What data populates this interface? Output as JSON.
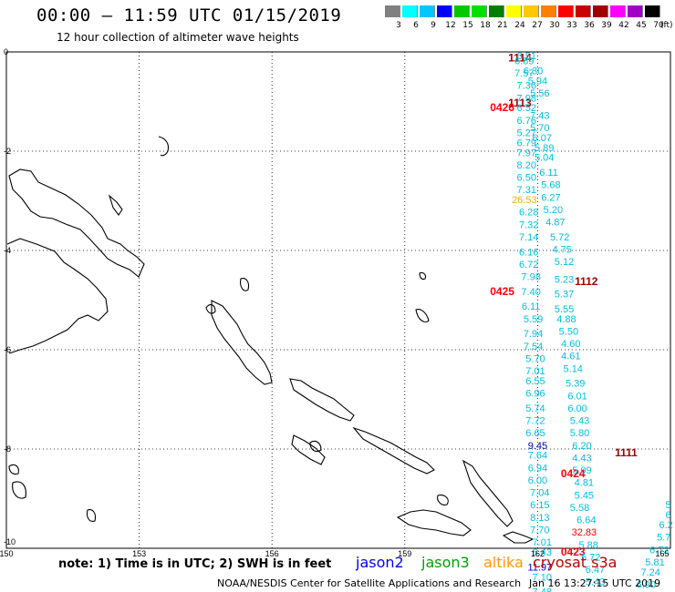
{
  "header": {
    "title": "00:00 — 11:59 UTC 01/15/2019",
    "subtitle": "12 hour collection of altimeter wave heights"
  },
  "legend": {
    "unit": "(ft)",
    "bins": [
      {
        "label": "3",
        "color": "#808080"
      },
      {
        "label": "6",
        "color": "#00ffff"
      },
      {
        "label": "9",
        "color": "#00c8ff"
      },
      {
        "label": "12",
        "color": "#0000ff"
      },
      {
        "label": "15",
        "color": "#00c800"
      },
      {
        "label": "18",
        "color": "#00e000"
      },
      {
        "label": "21",
        "color": "#008000"
      },
      {
        "label": "24",
        "color": "#ffff00"
      },
      {
        "label": "27",
        "color": "#ffc800"
      },
      {
        "label": "30",
        "color": "#ff8000"
      },
      {
        "label": "33",
        "color": "#ff0000"
      },
      {
        "label": "36",
        "color": "#c80000"
      },
      {
        "label": "39",
        "color": "#a00000"
      },
      {
        "label": "42",
        "color": "#ff00ff"
      },
      {
        "label": "45",
        "color": "#a000c8"
      },
      {
        "label": "70",
        "color": "#000000"
      }
    ]
  },
  "axes": {
    "x_ticks": [
      "150",
      "153",
      "156",
      "159",
      "162",
      "165"
    ],
    "y_ticks": [
      "0",
      "-2",
      "-4",
      "-6",
      "-8",
      "-10"
    ]
  },
  "footer": {
    "note": "note: 1) Time is in UTC; 2) SWH is in feet",
    "satellites": [
      {
        "name": "jason2",
        "color": "#0000ff"
      },
      {
        "name": "jason3",
        "color": "#00a000"
      },
      {
        "name": "altika",
        "color": "#ff9900"
      },
      {
        "name": "cryosat s3a",
        "color": "#c00000"
      }
    ],
    "credit": "NOAA/NESDIS Center for Satellite Applications and Research",
    "stamp": "Jan 16 13:27:15 UTC 2019"
  },
  "colors": {
    "cyan": "#00c0e0",
    "dark_red": "#a00000",
    "red": "#ff0000",
    "orange": "#f0b000",
    "blue": "#0000c0"
  },
  "track_labels": [
    {
      "text": "1114",
      "lon": 161.6,
      "lat": -0.05,
      "color": "#a00000"
    },
    {
      "text": "1113",
      "lon": 161.6,
      "lat": -0.95,
      "color": "#a00000"
    },
    {
      "text": "0426",
      "lon": 161.2,
      "lat": -1.05,
      "color": "#ff0000"
    },
    {
      "text": "1112",
      "lon": 163.1,
      "lat": -4.55,
      "color": "#a00000"
    },
    {
      "text": "0425",
      "lon": 161.2,
      "lat": -4.75,
      "color": "#ff0000"
    },
    {
      "text": "1111",
      "lon": 164.0,
      "lat": -8.0,
      "color": "#a00000"
    },
    {
      "text": "0424",
      "lon": 162.8,
      "lat": -8.42,
      "color": "#ff0000"
    },
    {
      "text": "0423",
      "lon": 162.8,
      "lat": -10.0,
      "color": "#ff0000"
    }
  ],
  "observations": [
    {
      "v": "6.51",
      "lon": 161.75,
      "lat": 0.0
    },
    {
      "v": "6.89",
      "lon": 161.7,
      "lat": -0.1
    },
    {
      "v": "6.30",
      "lon": 161.9,
      "lat": -0.3
    },
    {
      "v": "7.57",
      "lon": 161.7,
      "lat": -0.35
    },
    {
      "v": "5.94",
      "lon": 162.0,
      "lat": -0.5
    },
    {
      "v": "7.36",
      "lon": 161.75,
      "lat": -0.6
    },
    {
      "v": "5.56",
      "lon": 162.05,
      "lat": -0.75
    },
    {
      "v": "7.98",
      "lon": 161.75,
      "lat": -0.85
    },
    {
      "v": "6.52",
      "lon": 161.75,
      "lat": -1.05
    },
    {
      "v": "7.43",
      "lon": 162.05,
      "lat": -1.2
    },
    {
      "v": "6.76",
      "lon": 161.75,
      "lat": -1.3
    },
    {
      "v": "5.70",
      "lon": 162.05,
      "lat": -1.45
    },
    {
      "v": "5.27",
      "lon": 161.75,
      "lat": -1.55
    },
    {
      "v": "6.07",
      "lon": 162.1,
      "lat": -1.65
    },
    {
      "v": "6.79",
      "lon": 161.75,
      "lat": -1.75
    },
    {
      "v": "5.89",
      "lon": 162.15,
      "lat": -1.85
    },
    {
      "v": "7.97",
      "lon": 161.75,
      "lat": -1.95
    },
    {
      "v": "5.04",
      "lon": 162.15,
      "lat": -2.05
    },
    {
      "v": "8.20",
      "lon": 161.75,
      "lat": -2.2
    },
    {
      "v": "6.11",
      "lon": 162.25,
      "lat": -2.35
    },
    {
      "v": "6.50",
      "lon": 161.75,
      "lat": -2.45
    },
    {
      "v": "5.68",
      "lon": 162.3,
      "lat": -2.6
    },
    {
      "v": "7.31",
      "lon": 161.75,
      "lat": -2.7
    },
    {
      "v": "6.27",
      "lon": 162.3,
      "lat": -2.85
    },
    {
      "v": "26.53",
      "lon": 161.7,
      "lat": -2.9,
      "c": "orange"
    },
    {
      "v": "5.20",
      "lon": 162.35,
      "lat": -3.1
    },
    {
      "v": "6.28",
      "lon": 161.8,
      "lat": -3.15
    },
    {
      "v": "4.87",
      "lon": 162.4,
      "lat": -3.35
    },
    {
      "v": "7.32",
      "lon": 161.8,
      "lat": -3.4
    },
    {
      "v": "5.72",
      "lon": 162.5,
      "lat": -3.65
    },
    {
      "v": "7.14",
      "lon": 161.8,
      "lat": -3.65
    },
    {
      "v": "4.75",
      "lon": 162.55,
      "lat": -3.9
    },
    {
      "v": "6.16",
      "lon": 161.8,
      "lat": -3.95
    },
    {
      "v": "5.12",
      "lon": 162.6,
      "lat": -4.15
    },
    {
      "v": "6.72",
      "lon": 161.8,
      "lat": -4.2
    },
    {
      "v": "7.98",
      "lon": 161.85,
      "lat": -4.45
    },
    {
      "v": "5.23",
      "lon": 162.6,
      "lat": -4.5
    },
    {
      "v": "7.40",
      "lon": 161.85,
      "lat": -4.75
    },
    {
      "v": "5.37",
      "lon": 162.6,
      "lat": -4.8
    },
    {
      "v": "6.11",
      "lon": 161.85,
      "lat": -5.05
    },
    {
      "v": "5.55",
      "lon": 162.6,
      "lat": -5.1
    },
    {
      "v": "4.88",
      "lon": 162.65,
      "lat": -5.3
    },
    {
      "v": "5.59",
      "lon": 161.9,
      "lat": -5.3
    },
    {
      "v": "5.50",
      "lon": 162.7,
      "lat": -5.55
    },
    {
      "v": "7.94",
      "lon": 161.9,
      "lat": -5.6
    },
    {
      "v": "4.60",
      "lon": 162.75,
      "lat": -5.8
    },
    {
      "v": "7.54",
      "lon": 161.9,
      "lat": -5.85
    },
    {
      "v": "4.61",
      "lon": 162.75,
      "lat": -6.05
    },
    {
      "v": "5.70",
      "lon": 161.95,
      "lat": -6.1
    },
    {
      "v": "5.14",
      "lon": 162.8,
      "lat": -6.3
    },
    {
      "v": "7.01",
      "lon": 161.95,
      "lat": -6.35
    },
    {
      "v": "6.55",
      "lon": 161.95,
      "lat": -6.55
    },
    {
      "v": "5.39",
      "lon": 162.85,
      "lat": -6.6
    },
    {
      "v": "6.96",
      "lon": 161.95,
      "lat": -6.8
    },
    {
      "v": "6.01",
      "lon": 162.9,
      "lat": -6.85
    },
    {
      "v": "5.74",
      "lon": 161.95,
      "lat": -7.1
    },
    {
      "v": "6.00",
      "lon": 162.9,
      "lat": -7.1
    },
    {
      "v": "7.72",
      "lon": 161.95,
      "lat": -7.35
    },
    {
      "v": "5.43",
      "lon": 162.95,
      "lat": -7.35
    },
    {
      "v": "6.65",
      "lon": 161.95,
      "lat": -7.6
    },
    {
      "v": "5.80",
      "lon": 162.95,
      "lat": -7.6
    },
    {
      "v": "9.45",
      "lon": 162.0,
      "lat": -7.85,
      "c": "blue"
    },
    {
      "v": "6.20",
      "lon": 163.0,
      "lat": -7.85
    },
    {
      "v": "7.64",
      "lon": 162.0,
      "lat": -8.05
    },
    {
      "v": "4.43",
      "lon": 163.0,
      "lat": -8.1
    },
    {
      "v": "6.94",
      "lon": 162.0,
      "lat": -8.3
    },
    {
      "v": "5.09",
      "lon": 163.0,
      "lat": -8.35
    },
    {
      "v": "6.00",
      "lon": 162.0,
      "lat": -8.55
    },
    {
      "v": "4.81",
      "lon": 163.05,
      "lat": -8.6
    },
    {
      "v": "7.04",
      "lon": 162.05,
      "lat": -8.8
    },
    {
      "v": "5.45",
      "lon": 163.05,
      "lat": -8.85
    },
    {
      "v": "6.15",
      "lon": 162.05,
      "lat": -9.05
    },
    {
      "v": "5.58",
      "lon": 162.95,
      "lat": -9.1
    },
    {
      "v": "8.13",
      "lon": 162.05,
      "lat": -9.3
    },
    {
      "v": "6.64",
      "lon": 163.1,
      "lat": -9.35
    },
    {
      "v": "7.70",
      "lon": 162.05,
      "lat": -9.55
    },
    {
      "v": "32.83",
      "lon": 163.05,
      "lat": -9.6,
      "c": "red"
    },
    {
      "v": "7.01",
      "lon": 162.1,
      "lat": -9.8
    },
    {
      "v": "5.88",
      "lon": 163.15,
      "lat": -9.85
    },
    {
      "v": "6.43",
      "lon": 162.1,
      "lat": -10.0
    },
    {
      "v": "5.72",
      "lon": 163.2,
      "lat": -10.1
    },
    {
      "v": "11.97",
      "lon": 162.05,
      "lat": -10.3,
      "c": "blue"
    },
    {
      "v": "6.47",
      "lon": 163.3,
      "lat": -10.35
    },
    {
      "v": "7.10",
      "lon": 162.1,
      "lat": -10.5
    },
    {
      "v": "5.43",
      "lon": 163.3,
      "lat": -10.6
    },
    {
      "v": "7.48",
      "lon": 162.1,
      "lat": -10.8
    },
    {
      "v": "5",
      "lon": 164.95,
      "lat": -9.05
    },
    {
      "v": "6",
      "lon": 164.95,
      "lat": -9.25
    },
    {
      "v": "6.2",
      "lon": 164.9,
      "lat": -9.45
    },
    {
      "v": "5.7",
      "lon": 164.85,
      "lat": -9.7
    },
    {
      "v": "6.72",
      "lon": 164.75,
      "lat": -9.95
    },
    {
      "v": "5.81",
      "lon": 164.65,
      "lat": -10.2
    },
    {
      "v": "7.24",
      "lon": 164.55,
      "lat": -10.4
    },
    {
      "v": "6.90",
      "lon": 164.45,
      "lat": -10.65
    }
  ]
}
